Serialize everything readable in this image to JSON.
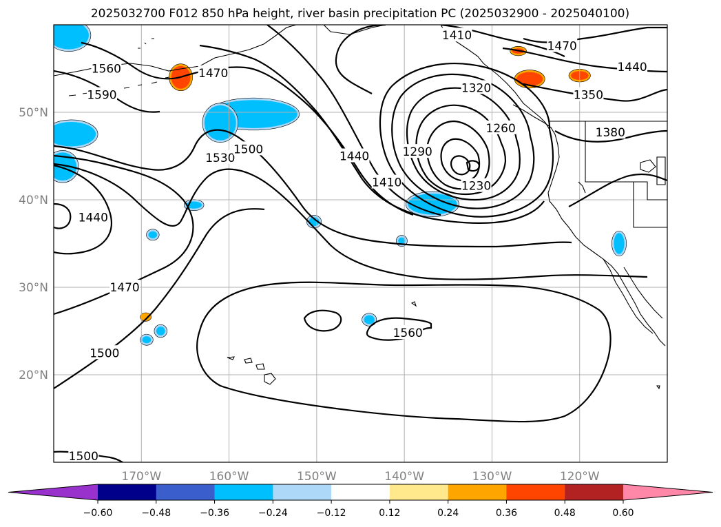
{
  "title": "2025032700 F012 850 hPa height, river basin precipitation PC (2025032900 - 2025040100)",
  "map": {
    "lat_labels": [
      {
        "text": "50°N",
        "lat": 50
      },
      {
        "text": "40°N",
        "lat": 40
      },
      {
        "text": "30°N",
        "lat": 30
      },
      {
        "text": "20°N",
        "lat": 20
      }
    ],
    "lon_labels": [
      {
        "text": "170°W",
        "lon": -170
      },
      {
        "text": "160°W",
        "lon": -160
      },
      {
        "text": "150°W",
        "lon": -150
      },
      {
        "text": "140°W",
        "lon": -140
      },
      {
        "text": "130°W",
        "lon": -130
      },
      {
        "text": "120°W",
        "lon": -120
      }
    ],
    "extent": {
      "lon_min": -180,
      "lon_max": -110,
      "lat_min": 10,
      "lat_max": 60
    },
    "contour_labels": [
      {
        "text": "1560",
        "lon": -174,
        "lat": 55.0
      },
      {
        "text": "1590",
        "lon": -174.5,
        "lat": 52.0
      },
      {
        "text": "1470",
        "lon": -161.8,
        "lat": 54.5
      },
      {
        "text": "1530",
        "lon": -161.0,
        "lat": 44.8
      },
      {
        "text": "1500",
        "lon": -157.8,
        "lat": 45.8
      },
      {
        "text": "1440",
        "lon": -145.7,
        "lat": 45.0
      },
      {
        "text": "1410",
        "lon": -142.0,
        "lat": 42.0
      },
      {
        "text": "1410",
        "lon": -134.0,
        "lat": 58.8
      },
      {
        "text": "1320",
        "lon": -131.8,
        "lat": 52.8
      },
      {
        "text": "1260",
        "lon": -129.0,
        "lat": 48.2
      },
      {
        "text": "1290",
        "lon": -138.5,
        "lat": 45.5
      },
      {
        "text": "1230",
        "lon": -131.8,
        "lat": 41.6
      },
      {
        "text": "1470",
        "lon": -122.0,
        "lat": 57.6
      },
      {
        "text": "1440",
        "lon": -114.0,
        "lat": 55.2
      },
      {
        "text": "1350",
        "lon": -119.0,
        "lat": 52.0
      },
      {
        "text": "1380",
        "lon": -116.5,
        "lat": 47.7
      },
      {
        "text": "1440",
        "lon": -175.5,
        "lat": 38.0
      },
      {
        "text": "1470",
        "lon": -171.9,
        "lat": 30.0
      },
      {
        "text": "1500",
        "lon": -174.2,
        "lat": 22.5
      },
      {
        "text": "1560",
        "lon": -139.6,
        "lat": 24.8
      },
      {
        "text": "1500",
        "lon": -176.6,
        "lat": 10.7
      }
    ],
    "precip_blobs": [
      {
        "level": -0.36,
        "lon": -178.3,
        "lat": 58.8,
        "rlon": 2.3,
        "rlat": 1.6
      },
      {
        "level": -0.36,
        "lon": -178.0,
        "lat": 47.5,
        "rlon": 2.8,
        "rlat": 1.4
      },
      {
        "level": -0.36,
        "lon": -179.0,
        "lat": 43.8,
        "rlon": 1.6,
        "rlat": 1.6
      },
      {
        "level": -0.36,
        "lon": -157.2,
        "lat": 49.8,
        "rlon": 5.0,
        "rlat": 1.6
      },
      {
        "level": -0.36,
        "lon": -161.0,
        "lat": 48.8,
        "rlon": 1.8,
        "rlat": 2.0
      },
      {
        "level": -0.36,
        "lon": -136.8,
        "lat": 39.5,
        "rlon": 2.8,
        "rlat": 1.2
      },
      {
        "level": -0.36,
        "lon": -164.0,
        "lat": 39.4,
        "rlon": 0.9,
        "rlat": 0.4
      },
      {
        "level": -0.36,
        "lon": -150.3,
        "lat": 37.5,
        "rlon": 0.6,
        "rlat": 0.5
      },
      {
        "level": -0.36,
        "lon": -140.3,
        "lat": 35.3,
        "rlon": 0.4,
        "rlat": 0.4
      },
      {
        "level": -0.36,
        "lon": -115.5,
        "lat": 35.0,
        "rlon": 0.6,
        "rlat": 1.2
      },
      {
        "level": -0.36,
        "lon": -144.0,
        "lat": 26.3,
        "rlon": 0.6,
        "rlat": 0.5
      },
      {
        "level": -0.36,
        "lon": -169.4,
        "lat": 24.0,
        "rlon": 0.5,
        "rlat": 0.4
      },
      {
        "level": -0.36,
        "lon": -167.8,
        "lat": 25.0,
        "rlon": 0.5,
        "rlat": 0.5
      },
      {
        "level": -0.36,
        "lon": -168.7,
        "lat": 36.0,
        "rlon": 0.5,
        "rlat": 0.4
      },
      {
        "level": 0.36,
        "lon": -165.5,
        "lat": 54.0,
        "rlon": 1.1,
        "rlat": 1.3
      },
      {
        "level": 0.36,
        "lon": -127.0,
        "lat": 57.0,
        "rlon": 0.7,
        "rlat": 0.3
      },
      {
        "level": 0.36,
        "lon": -125.7,
        "lat": 53.8,
        "rlon": 1.5,
        "rlat": 0.8
      },
      {
        "level": 0.36,
        "lon": -120.0,
        "lat": 54.2,
        "rlon": 1.0,
        "rlat": 0.5
      },
      {
        "level": 0.24,
        "lon": -169.5,
        "lat": 26.6,
        "rlon": 0.4,
        "rlat": 0.25
      }
    ]
  },
  "colorbar": {
    "ticks": [
      "−0.60",
      "−0.48",
      "−0.36",
      "−0.24",
      "−0.12",
      "0.12",
      "0.24",
      "0.36",
      "0.48",
      "0.60"
    ],
    "levels": [
      -0.6,
      -0.48,
      -0.36,
      -0.24,
      -0.12,
      0.12,
      0.24,
      0.36,
      0.48,
      0.6
    ],
    "colors": [
      "#9932cc",
      "#00008b",
      "#3a5fcd",
      "#00bfff",
      "#add8f8",
      "#ffffff",
      "#ffe98c",
      "#ffa500",
      "#ff4500",
      "#b22222",
      "#ff88a8"
    ],
    "extend": "both"
  }
}
